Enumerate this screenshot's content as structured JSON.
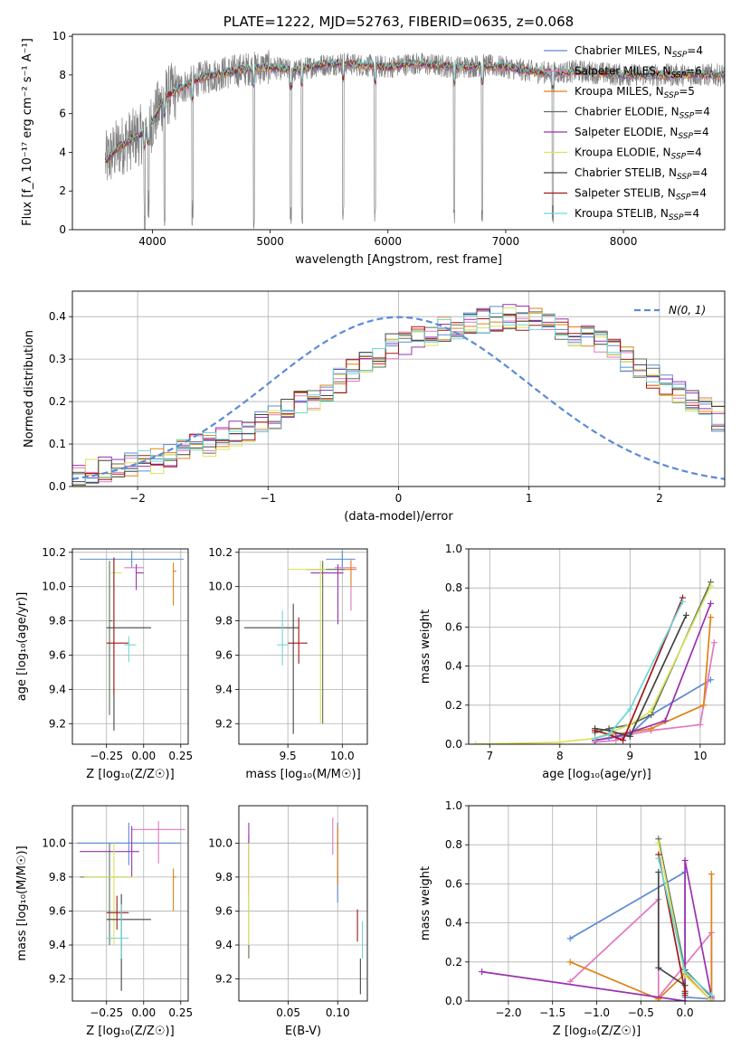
{
  "colors": {
    "grid": "#b0b0b0",
    "normal_curve": "#5b8bd6"
  },
  "series_colors": [
    {
      "name": "Chabrier MILES",
      "color": "#5b8bd6"
    },
    {
      "name": "Salpeter MILES",
      "color": "#e377c2"
    },
    {
      "name": "Kroupa MILES",
      "color": "#e08214"
    },
    {
      "name": "Chabrier ELODIE",
      "color": "#5a6f5a"
    },
    {
      "name": "Salpeter ELODIE",
      "color": "#9b30b0"
    },
    {
      "name": "Kroupa ELODIE",
      "color": "#dce25a"
    },
    {
      "name": "Chabrier STELIB",
      "color": "#444444"
    },
    {
      "name": "Salpeter STELIB",
      "color": "#a01818"
    },
    {
      "name": "Kroupa STELIB",
      "color": "#70d6d6"
    }
  ],
  "chart_data": [
    {
      "id": "spectrum",
      "type": "line",
      "title": "PLATE=1222, MJD=52763, FIBERID=0635, z=0.068",
      "xlabel": "wavelength [Angstrom, rest frame]",
      "ylabel": "Flux [f_λ 10⁻¹⁷ erg cm⁻² s⁻¹ A⁻¹]",
      "xlim": [
        3320,
        8860
      ],
      "ylim": [
        0,
        10.1
      ],
      "xticks": [
        4000,
        5000,
        6000,
        7000,
        8000
      ],
      "yticks": [
        0,
        2,
        4,
        6,
        8,
        10
      ],
      "grid": false,
      "legend_position": "top-right",
      "legend": [
        {
          "label": "Chabrier MILES, N",
          "sub": "SSP",
          "rest": "=4"
        },
        {
          "label": "Salpeter MILES, N",
          "sub": "SSP",
          "rest": "=6"
        },
        {
          "label": "Kroupa MILES, N",
          "sub": "SSP",
          "rest": "=5"
        },
        {
          "label": "Chabrier ELODIE, N",
          "sub": "SSP",
          "rest": "=4"
        },
        {
          "label": "Salpeter ELODIE, N",
          "sub": "SSP",
          "rest": "=4"
        },
        {
          "label": "Kroupa ELODIE, N",
          "sub": "SSP",
          "rest": "=4"
        },
        {
          "label": "Chabrier STELIB, N",
          "sub": "SSP",
          "rest": "=4"
        },
        {
          "label": "Salpeter STELIB, N",
          "sub": "SSP",
          "rest": "=4"
        },
        {
          "label": "Kroupa STELIB, N",
          "sub": "SSP",
          "rest": "=4"
        }
      ],
      "data_color": "#808080",
      "data_range": [
        3600,
        8860
      ],
      "model_shape": {
        "x": [
          3600,
          3700,
          3800,
          3900,
          4000,
          4100,
          4200,
          4400,
          4600,
          4800,
          5000,
          5200,
          5400,
          5600,
          5800,
          6000,
          6200,
          6400,
          6600,
          6800,
          7000,
          7200,
          7400,
          7600,
          7800,
          8000,
          8200,
          8400,
          8600,
          8860
        ],
        "y": [
          3.5,
          4.2,
          4.6,
          4.9,
          5.6,
          6.8,
          7.2,
          7.8,
          8.1,
          8.3,
          8.4,
          8.2,
          8.5,
          8.6,
          8.5,
          8.4,
          8.6,
          8.5,
          8.4,
          8.5,
          8.4,
          8.2,
          8.1,
          8.2,
          8.1,
          8.0,
          8.0,
          8.0,
          8.0,
          8.0
        ]
      },
      "absorption_lines": [
        3933,
        3968,
        4102,
        4340,
        4861,
        5175,
        5270,
        5620,
        5890,
        6563,
        6800,
        7400
      ]
    },
    {
      "id": "residuals",
      "type": "histogram",
      "xlabel": "(data-model)/error",
      "ylabel": "Normed distribution",
      "xlim": [
        -2.5,
        2.5
      ],
      "ylim": [
        0,
        0.46
      ],
      "xticks": [
        -2,
        -1,
        0,
        1,
        2
      ],
      "yticks": [
        0.0,
        0.1,
        0.2,
        0.3,
        0.4
      ],
      "grid": true,
      "legend_position": "top-right",
      "legend": [
        {
          "label": "N(0, 1)",
          "style": "dashed"
        }
      ],
      "bin_edges_from": -2.5,
      "bin_width": 0.1,
      "base_values": [
        0.03,
        0.035,
        0.04,
        0.045,
        0.05,
        0.055,
        0.06,
        0.07,
        0.085,
        0.095,
        0.1,
        0.11,
        0.125,
        0.135,
        0.15,
        0.165,
        0.185,
        0.2,
        0.21,
        0.23,
        0.25,
        0.27,
        0.29,
        0.31,
        0.33,
        0.34,
        0.35,
        0.36,
        0.37,
        0.375,
        0.38,
        0.39,
        0.395,
        0.4,
        0.395,
        0.39,
        0.38,
        0.37,
        0.36,
        0.35,
        0.34,
        0.32,
        0.3,
        0.28,
        0.26,
        0.24,
        0.22,
        0.2,
        0.18,
        0.16
      ],
      "normal": {
        "mu": 0,
        "sigma": 1
      }
    },
    {
      "id": "age_vs_Z",
      "type": "errorbar",
      "xlabel": "Z [log₁₀(Z/Z☉)]",
      "ylabel": "age  [log₁₀(age/yr)]",
      "xlim": [
        -0.48,
        0.3
      ],
      "ylim": [
        9.08,
        10.22
      ],
      "xticks": [
        -0.25,
        0.0,
        0.25
      ],
      "yticks": [
        9.2,
        9.4,
        9.6,
        9.8,
        10.0,
        10.2
      ],
      "grid": true,
      "points": [
        {
          "s": 0,
          "x": -0.08,
          "xe": [
            0.35,
            0.35
          ],
          "y": 10.16,
          "ye": [
            0.05,
            0.05
          ]
        },
        {
          "s": 1,
          "x": -0.05,
          "xe": [
            0.08,
            0.05
          ],
          "y": 10.11,
          "ye": [
            0.02,
            0.02
          ]
        },
        {
          "s": 2,
          "x": 0.2,
          "xe": [
            0.0,
            0.02
          ],
          "y": 10.09,
          "ye": [
            0.2,
            0.05
          ]
        },
        {
          "s": 3,
          "x": -0.23,
          "xe": [
            0.0,
            0.02
          ],
          "y": 9.8,
          "ye": [
            0.55,
            0.35
          ]
        },
        {
          "s": 4,
          "x": -0.05,
          "xe": [
            0.0,
            0.05
          ],
          "y": 10.08,
          "ye": [
            0.1,
            0.05
          ]
        },
        {
          "s": 5,
          "x": -0.2,
          "xe": [
            0.02,
            0.05
          ],
          "y": 10.08,
          "ye": [
            0.06,
            0.06
          ]
        },
        {
          "s": 6,
          "x": -0.2,
          "xe": [
            0.05,
            0.25
          ],
          "y": 9.76,
          "ye": [
            0.6,
            0.4
          ]
        },
        {
          "s": 7,
          "x": -0.2,
          "xe": [
            0.05,
            0.1
          ],
          "y": 9.67,
          "ye": [
            0.3,
            0.5
          ]
        },
        {
          "s": 8,
          "x": -0.1,
          "xe": [
            0.03,
            0.05
          ],
          "y": 9.66,
          "ye": [
            0.1,
            0.05
          ]
        }
      ]
    },
    {
      "id": "age_vs_mass",
      "type": "errorbar",
      "xlabel": "mass [log₁₀(M/M☉)]",
      "ylabel": "",
      "xlim": [
        9.05,
        10.23
      ],
      "ylim": [
        9.08,
        10.22
      ],
      "xticks": [
        9.5,
        10.0
      ],
      "yticks": [
        9.2,
        9.4,
        9.6,
        9.8,
        10.0,
        10.2
      ],
      "grid": true,
      "points": [
        {
          "s": 0,
          "x": 10.0,
          "xe": [
            0.15,
            0.12
          ],
          "y": 10.16,
          "ye": [
            0.05,
            0.05
          ]
        },
        {
          "s": 1,
          "x": 10.08,
          "xe": [
            0.15,
            0.05
          ],
          "y": 10.11,
          "ye": [
            0.25,
            0.05
          ]
        },
        {
          "s": 2,
          "x": 10.08,
          "xe": [
            0.1,
            0.05
          ],
          "y": 10.1,
          "ye": [
            0.1,
            0.05
          ]
        },
        {
          "s": 3,
          "x": 9.82,
          "xe": [
            0.15,
            0.2
          ],
          "y": 10.1,
          "ye": [
            0.9,
            0.05
          ]
        },
        {
          "s": 4,
          "x": 9.96,
          "xe": [
            0.25,
            0.05
          ],
          "y": 10.08,
          "ye": [
            0.3,
            0.05
          ]
        },
        {
          "s": 5,
          "x": 9.8,
          "xe": [
            0.3,
            0.05
          ],
          "y": 10.1,
          "ye": [
            0.9,
            0.05
          ]
        },
        {
          "s": 6,
          "x": 9.55,
          "xe": [
            0.45,
            0.05
          ],
          "y": 9.76,
          "ye": [
            0.62,
            0.14
          ]
        },
        {
          "s": 7,
          "x": 9.6,
          "xe": [
            0.1,
            0.08
          ],
          "y": 9.67,
          "ye": [
            0.12,
            0.15
          ]
        },
        {
          "s": 8,
          "x": 9.45,
          "xe": [
            0.05,
            0.05
          ],
          "y": 9.66,
          "ye": [
            0.12,
            0.2
          ]
        }
      ]
    },
    {
      "id": "massweight_vs_age",
      "type": "line",
      "xlabel": "age  [log₁₀(age/yr)]",
      "ylabel": "mass weight",
      "xlim": [
        6.7,
        10.35
      ],
      "ylim": [
        0,
        1.0
      ],
      "xticks": [
        7,
        8,
        9,
        10
      ],
      "yticks": [
        0.0,
        0.2,
        0.4,
        0.6,
        0.8,
        1.0
      ],
      "grid": true,
      "series": [
        {
          "s": 0,
          "x": [
            8.5,
            8.7,
            9.0,
            9.3,
            10.15
          ],
          "y": [
            0.02,
            0.03,
            0.05,
            0.15,
            0.33
          ]
        },
        {
          "s": 1,
          "x": [
            8.5,
            8.8,
            9.0,
            9.3,
            10.0,
            10.2
          ],
          "y": [
            0.01,
            0.02,
            0.05,
            0.07,
            0.1,
            0.52
          ]
        },
        {
          "s": 2,
          "x": [
            8.5,
            8.7,
            9.0,
            9.3,
            10.05,
            10.15
          ],
          "y": [
            0.03,
            0.05,
            0.06,
            0.08,
            0.2,
            0.65
          ]
        },
        {
          "s": 3,
          "x": [
            8.5,
            8.7,
            9.0,
            9.3,
            10.15
          ],
          "y": [
            0.06,
            0.08,
            0.1,
            0.15,
            0.83
          ]
        },
        {
          "s": 4,
          "x": [
            8.5,
            8.8,
            9.0,
            9.5,
            10.15
          ],
          "y": [
            0.02,
            0.04,
            0.06,
            0.12,
            0.72
          ]
        },
        {
          "s": 5,
          "x": [
            6.8,
            8.0,
            8.5,
            9.0,
            9.3,
            10.15
          ],
          "y": [
            0.0,
            0.01,
            0.03,
            0.1,
            0.17,
            0.81
          ]
        },
        {
          "s": 6,
          "x": [
            8.5,
            8.7,
            9.0,
            9.8
          ],
          "y": [
            0.08,
            0.07,
            0.04,
            0.66
          ]
        },
        {
          "s": 7,
          "x": [
            8.5,
            8.7,
            8.9,
            9.75
          ],
          "y": [
            0.07,
            0.05,
            0.02,
            0.75
          ]
        },
        {
          "s": 8,
          "x": [
            8.5,
            8.7,
            9.0,
            9.75
          ],
          "y": [
            0.03,
            0.05,
            0.18,
            0.73
          ]
        }
      ]
    },
    {
      "id": "mass_vs_Z",
      "type": "errorbar",
      "xlabel": "Z [log₁₀(Z/Z☉)]",
      "ylabel": "mass [log₁₀(M/M☉)]",
      "xlim": [
        -0.48,
        0.3
      ],
      "ylim": [
        9.07,
        10.22
      ],
      "xticks": [
        -0.25,
        0.0,
        0.25
      ],
      "yticks": [
        9.2,
        9.4,
        9.6,
        9.8,
        10.0
      ],
      "grid": true,
      "points": [
        {
          "s": 0,
          "x": -0.1,
          "xe": [
            0.35,
            0.35
          ],
          "y": 10.0,
          "ye": [
            0.13,
            0.12
          ]
        },
        {
          "s": 1,
          "x": 0.1,
          "xe": [
            0.18,
            0.18
          ],
          "y": 10.08,
          "ye": [
            0.2,
            0.05
          ]
        },
        {
          "s": 2,
          "x": 0.2,
          "xe": [
            0.0,
            0.02
          ],
          "y": 9.8,
          "ye": [
            0.2,
            0.05
          ]
        },
        {
          "s": 3,
          "x": -0.23,
          "xe": [
            0.2,
            0.15
          ],
          "y": 9.8,
          "ye": [
            0.4,
            0.2
          ]
        },
        {
          "s": 4,
          "x": -0.08,
          "xe": [
            0.35,
            0.05
          ],
          "y": 9.95,
          "ye": [
            0.15,
            0.15
          ]
        },
        {
          "s": 5,
          "x": -0.2,
          "xe": [
            0.2,
            0.15
          ],
          "y": 9.8,
          "ye": [
            0.4,
            0.2
          ]
        },
        {
          "s": 6,
          "x": -0.15,
          "xe": [
            0.1,
            0.2
          ],
          "y": 9.55,
          "ye": [
            0.42,
            0.15
          ]
        },
        {
          "s": 7,
          "x": -0.18,
          "xe": [
            0.07,
            0.08
          ],
          "y": 9.59,
          "ye": [
            0.1,
            0.1
          ]
        },
        {
          "s": 8,
          "x": -0.15,
          "xe": [
            0.1,
            0.05
          ],
          "y": 9.44,
          "ye": [
            0.12,
            0.2
          ]
        }
      ]
    },
    {
      "id": "mass_vs_EBV",
      "type": "errorbar",
      "xlabel": "E(B-V)",
      "ylabel": "",
      "xlim": [
        0.0,
        0.13
      ],
      "ylim": [
        9.07,
        10.22
      ],
      "xticks": [
        0.05,
        0.1
      ],
      "yticks": [
        9.2,
        9.4,
        9.6,
        9.8,
        10.0
      ],
      "grid": true,
      "points": [
        {
          "s": 0,
          "x": 0.1,
          "xe": [
            0,
            0
          ],
          "y": 10.0,
          "ye": [
            0.35,
            0.12
          ]
        },
        {
          "s": 1,
          "x": 0.095,
          "xe": [
            0,
            0
          ],
          "y": 10.08,
          "ye": [
            0.15,
            0.07
          ]
        },
        {
          "s": 2,
          "x": 0.1,
          "xe": [
            0,
            0
          ],
          "y": 9.8,
          "ye": [
            0.05,
            0.3
          ]
        },
        {
          "s": 3,
          "x": 0.01,
          "xe": [
            0,
            0
          ],
          "y": 9.7,
          "ye": [
            0.38,
            0.35
          ]
        },
        {
          "s": 4,
          "x": 0.01,
          "xe": [
            0,
            0
          ],
          "y": 9.95,
          "ye": [
            0.25,
            0.17
          ]
        },
        {
          "s": 5,
          "x": 0.01,
          "xe": [
            0,
            0
          ],
          "y": 9.7,
          "ye": [
            0.3,
            0.3
          ]
        },
        {
          "s": 6,
          "x": 0.123,
          "xe": [
            0,
            0
          ],
          "y": 9.2,
          "ye": [
            0.09,
            0.12
          ]
        },
        {
          "s": 7,
          "x": 0.12,
          "xe": [
            0,
            0
          ],
          "y": 9.52,
          "ye": [
            0.1,
            0.09
          ]
        },
        {
          "s": 8,
          "x": 0.125,
          "xe": [
            0,
            0
          ],
          "y": 9.44,
          "ye": [
            0.12,
            0.1
          ]
        }
      ]
    },
    {
      "id": "massweight_vs_Z",
      "type": "line",
      "xlabel": "Z [log₁₀(Z/Z☉)]",
      "ylabel": "mass weight",
      "xlim": [
        -2.45,
        0.45
      ],
      "ylim": [
        0,
        1.0
      ],
      "xticks": [
        -2.0,
        -1.5,
        -1.0,
        -0.5,
        0.0
      ],
      "yticks": [
        0.0,
        0.2,
        0.4,
        0.6,
        0.8,
        1.0
      ],
      "grid": true,
      "series": [
        {
          "s": 0,
          "x": [
            -1.3,
            0.0,
            0.0,
            0.3
          ],
          "y": [
            0.32,
            0.66,
            0.02,
            0.01
          ]
        },
        {
          "s": 1,
          "x": [
            -1.3,
            -0.3,
            -0.3,
            0.3,
            0.3
          ],
          "y": [
            0.1,
            0.52,
            0.02,
            0.35,
            0.01
          ]
        },
        {
          "s": 2,
          "x": [
            -1.3,
            -0.3,
            0.0,
            0.3,
            0.3
          ],
          "y": [
            0.2,
            0.01,
            0.14,
            0.0,
            0.65
          ]
        },
        {
          "s": 3,
          "x": [
            -0.3,
            0.0,
            0.3
          ],
          "y": [
            0.83,
            0.16,
            0.02
          ]
        },
        {
          "s": 4,
          "x": [
            -2.3,
            0.0,
            0.0,
            0.3
          ],
          "y": [
            0.15,
            0.0,
            0.72,
            0.02
          ]
        },
        {
          "s": 5,
          "x": [
            -0.3,
            0.0,
            0.3
          ],
          "y": [
            0.81,
            0.13,
            0.0
          ]
        },
        {
          "s": 6,
          "x": [
            -0.3,
            -0.3,
            0.0,
            0.0
          ],
          "y": [
            0.66,
            0.17,
            0.08,
            0.04
          ]
        },
        {
          "s": 7,
          "x": [
            -0.3,
            0.0,
            0.0
          ],
          "y": [
            0.75,
            0.05,
            0.03
          ]
        },
        {
          "s": 8,
          "x": [
            -0.3,
            0.0,
            0.3
          ],
          "y": [
            0.73,
            0.15,
            0.03
          ]
        }
      ]
    }
  ]
}
